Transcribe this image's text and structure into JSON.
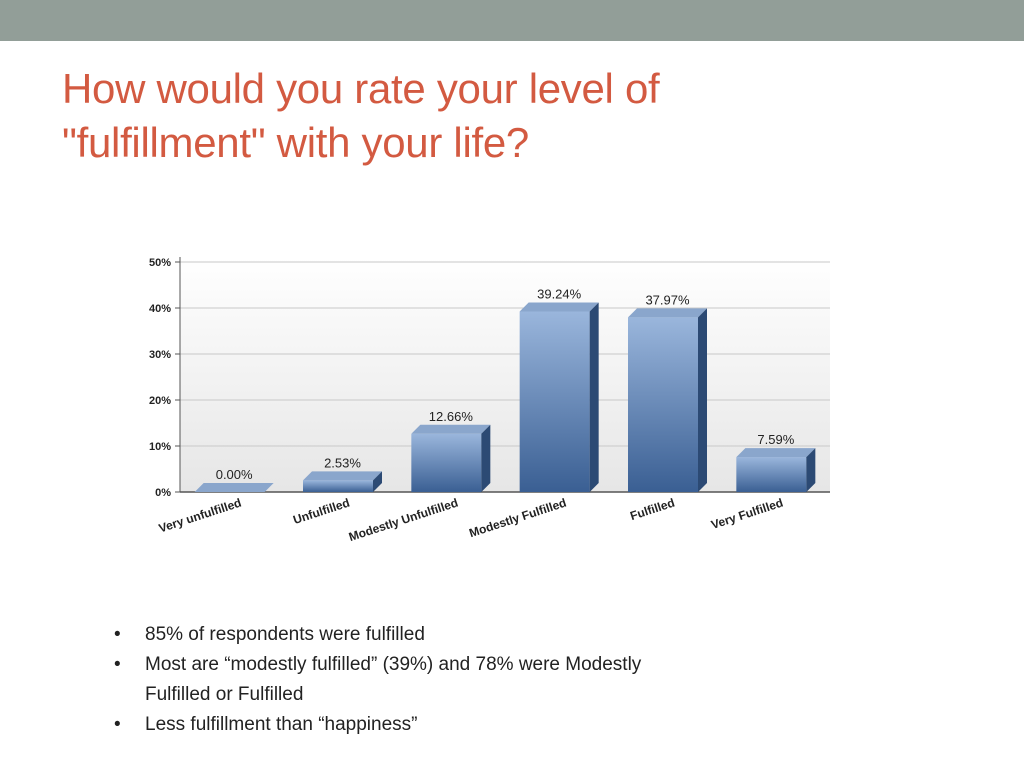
{
  "slide": {
    "title_lines": [
      "How would you rate your level of",
      "\"fulfillment\" with your life?"
    ],
    "bullet_symbol": "•",
    "bullets": [
      {
        "lines": [
          "85% of respondents were fulfilled"
        ]
      },
      {
        "lines": [
          "Most are “modestly fulfilled” (39%) and 78% were Modestly",
          "Fulfilled or Fulfilled"
        ]
      },
      {
        "lines": [
          "Less fulfillment than “happiness”"
        ]
      }
    ]
  },
  "colors": {
    "title": "#d35a41",
    "top_bar": "#929e98",
    "bar_light": "#9ab6dc",
    "bar_dark": "#3a5f93",
    "bar_side": "#2c4a74",
    "bar_top": "#8aa6cc"
  },
  "chart_data": {
    "type": "bar",
    "categories": [
      "Very unfulfilled",
      "Unfulfilled",
      "Modestly Unfulfilled",
      "Modestly Fulfilled",
      "Fulfilled",
      "Very Fulfilled"
    ],
    "values": [
      0.0,
      2.53,
      12.66,
      39.24,
      37.97,
      7.59
    ],
    "data_labels": [
      "0.00%",
      "2.53%",
      "12.66%",
      "39.24%",
      "37.97%",
      "7.59%"
    ],
    "ylim": [
      0,
      50
    ],
    "yticks": [
      0,
      10,
      20,
      30,
      40,
      50
    ],
    "ytick_labels": [
      "0%",
      "10%",
      "20%",
      "30%",
      "40%",
      "50%"
    ],
    "grid": true,
    "title": "",
    "xlabel": "",
    "ylabel": ""
  }
}
